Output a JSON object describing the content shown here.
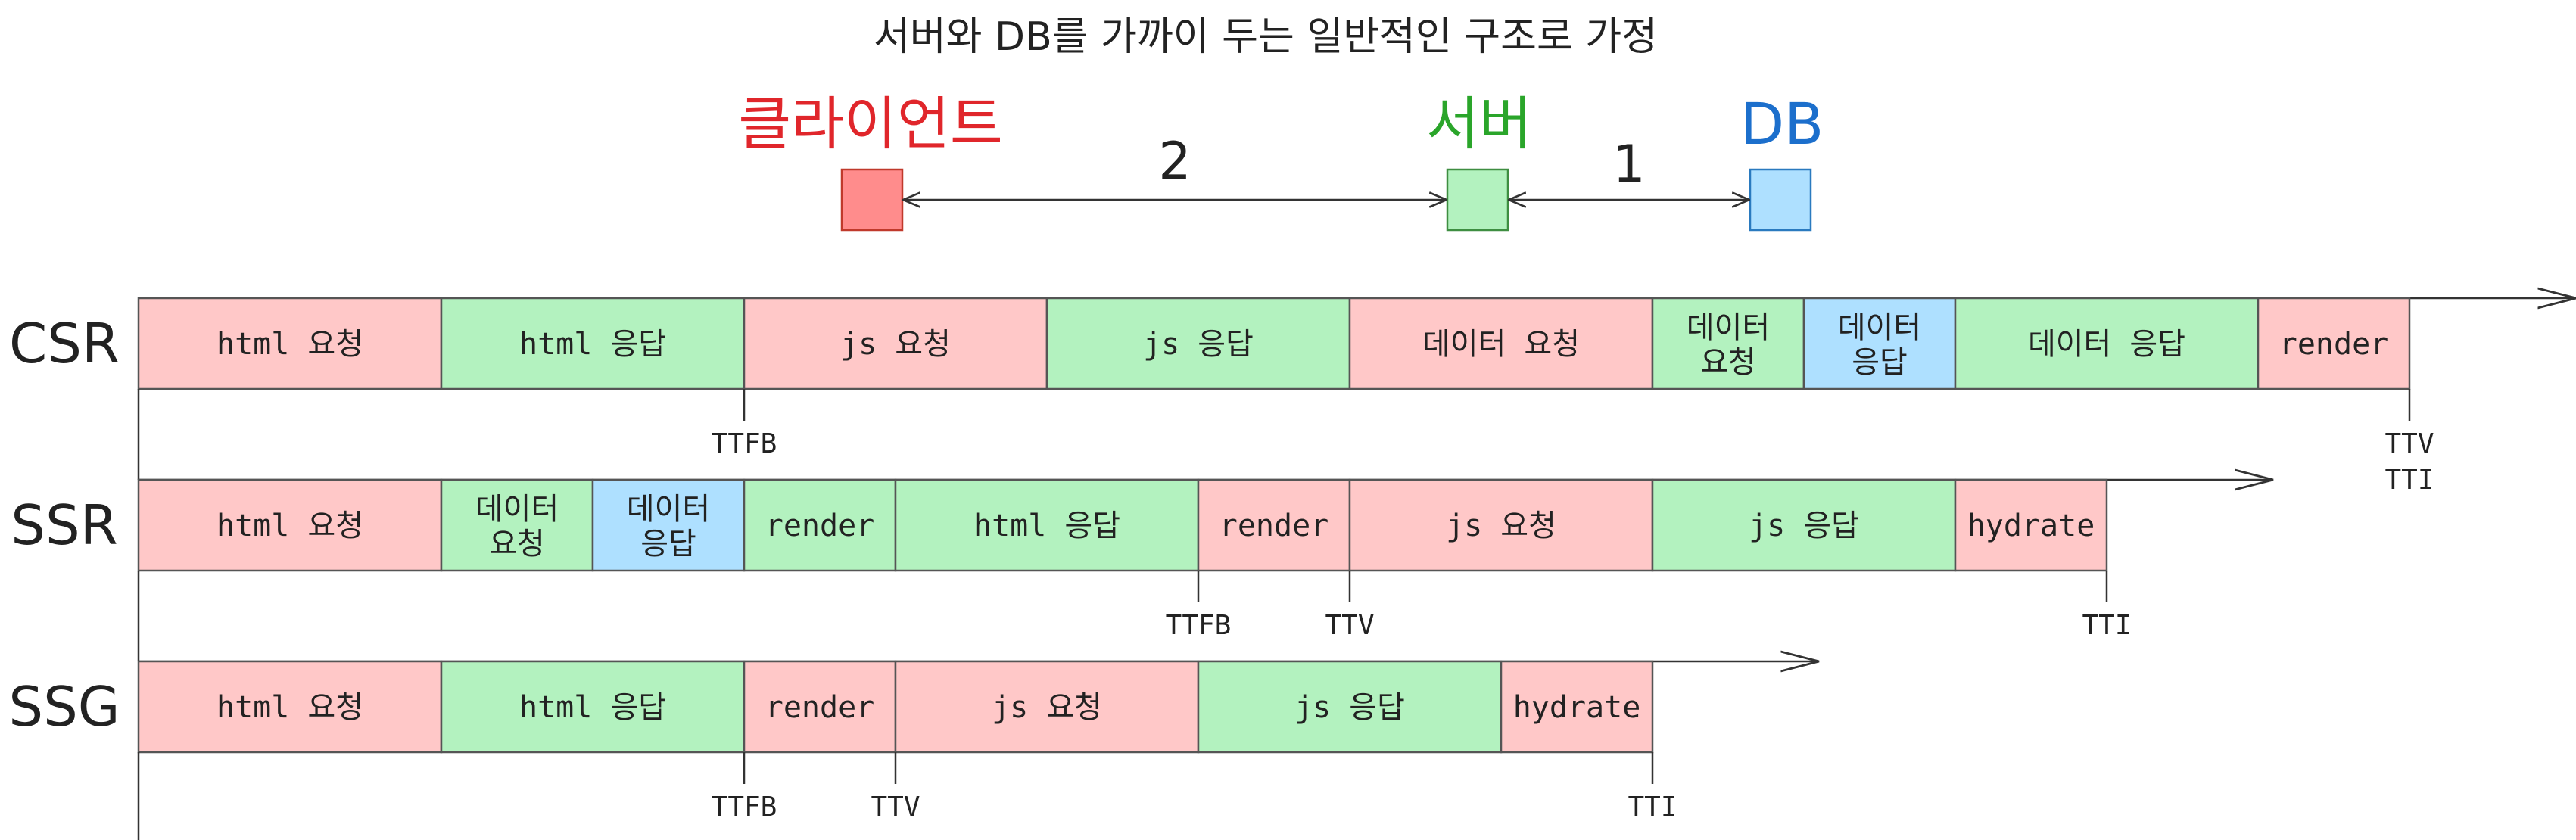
{
  "title": "서버와 DB를 가까이 두는 일반적인 구조로 가정",
  "colors": {
    "client": "#ffc8c8",
    "server": "#b3f2bf",
    "db": "#aee0ff",
    "client_node": "#ff8c8c",
    "server_node": "#b3f2bf",
    "db_node": "#aee0ff",
    "client_label": "#e0262b",
    "server_label": "#2aa52a",
    "db_label": "#1c6fcc"
  },
  "nodes": {
    "client": "클라이언트",
    "server": "서버",
    "db": "DB"
  },
  "hops": {
    "client_server": "2",
    "server_db": "1"
  },
  "rows": [
    {
      "label": "CSR",
      "segments": [
        {
          "text": [
            "html 요청"
          ],
          "kind": "client",
          "dur": 2
        },
        {
          "text": [
            "html 응답"
          ],
          "kind": "server",
          "dur": 2
        },
        {
          "text": [
            "js 요청"
          ],
          "kind": "client",
          "dur": 2
        },
        {
          "text": [
            "js 응답"
          ],
          "kind": "server",
          "dur": 2
        },
        {
          "text": [
            "데이터 요청"
          ],
          "kind": "client",
          "dur": 2
        },
        {
          "text": [
            "데이터",
            "요청"
          ],
          "kind": "server",
          "dur": 1
        },
        {
          "text": [
            "데이터",
            "응답"
          ],
          "kind": "db",
          "dur": 1
        },
        {
          "text": [
            "데이터 응답"
          ],
          "kind": "server",
          "dur": 2
        },
        {
          "text": [
            "render"
          ],
          "kind": "client",
          "dur": 1
        }
      ],
      "markers": [
        {
          "at": 4,
          "labels": [
            "TTFB"
          ]
        },
        {
          "at": 15,
          "labels": [
            "TTV",
            "TTI"
          ]
        }
      ],
      "arrow_end": 16
    },
    {
      "label": "SSR",
      "segments": [
        {
          "text": [
            "html 요청"
          ],
          "kind": "client",
          "dur": 2
        },
        {
          "text": [
            "데이터",
            "요청"
          ],
          "kind": "server",
          "dur": 1
        },
        {
          "text": [
            "데이터",
            "응답"
          ],
          "kind": "db",
          "dur": 1
        },
        {
          "text": [
            "render"
          ],
          "kind": "server",
          "dur": 1
        },
        {
          "text": [
            "html 응답"
          ],
          "kind": "server",
          "dur": 2
        },
        {
          "text": [
            "render"
          ],
          "kind": "client",
          "dur": 1
        },
        {
          "text": [
            "js 요청"
          ],
          "kind": "client",
          "dur": 2
        },
        {
          "text": [
            "js 응답"
          ],
          "kind": "server",
          "dur": 2
        },
        {
          "text": [
            "hydrate"
          ],
          "kind": "client",
          "dur": 1
        }
      ],
      "markers": [
        {
          "at": 7,
          "labels": [
            "TTFB"
          ]
        },
        {
          "at": 8,
          "labels": [
            "TTV"
          ]
        },
        {
          "at": 13,
          "labels": [
            "TTI"
          ]
        }
      ],
      "arrow_end": 14
    },
    {
      "label": "SSG",
      "segments": [
        {
          "text": [
            "html 요청"
          ],
          "kind": "client",
          "dur": 2
        },
        {
          "text": [
            "html 응답"
          ],
          "kind": "server",
          "dur": 2
        },
        {
          "text": [
            "render"
          ],
          "kind": "client",
          "dur": 1
        },
        {
          "text": [
            "js 요청"
          ],
          "kind": "client",
          "dur": 2
        },
        {
          "text": [
            "js 응답"
          ],
          "kind": "server",
          "dur": 2
        },
        {
          "text": [
            "hydrate"
          ],
          "kind": "client",
          "dur": 1
        }
      ],
      "markers": [
        {
          "at": 4,
          "labels": [
            "TTFB"
          ]
        },
        {
          "at": 5,
          "labels": [
            "TTV"
          ]
        },
        {
          "at": 10,
          "labels": [
            "TTI"
          ]
        }
      ],
      "arrow_end": 11
    }
  ]
}
